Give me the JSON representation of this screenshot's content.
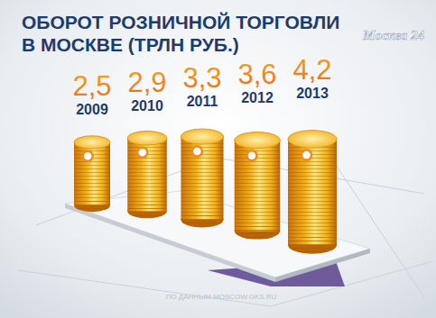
{
  "chart_data": {
    "type": "bar",
    "title": "ОБОРОТ РОЗНИЧНОЙ ТОРГОВЛИ\nВ МОСКВЕ (ТРЛН  РУБ.)",
    "annotations": [
      "Москва 24",
      "ПО ДАННЫМ MOSCOW.GKS.RU"
    ],
    "categories": [
      "2009",
      "2010",
      "2011",
      "2012",
      "2013"
    ],
    "values": [
      2.5,
      2.9,
      3.3,
      3.6,
      4.2
    ],
    "value_labels": [
      "2,5",
      "2,9",
      "3,3",
      "3,6",
      "4,2"
    ],
    "color": "#f2b01e",
    "ylim": [
      0,
      5
    ],
    "data_labels": true,
    "tick_labels": false,
    "grid": false
  }
}
